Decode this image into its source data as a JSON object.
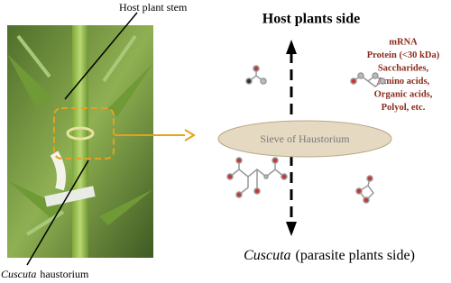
{
  "photo_labels": {
    "stem": "Host plant stem",
    "haustorium": {
      "genus": "Cuscuta",
      "text": "haustorium"
    }
  },
  "host_side": {
    "title": "Host plants side",
    "molecules": [
      "mRNA",
      "Protein (<30 kDa)",
      "Saccharides,",
      "Amino acids,",
      "Organic acids,",
      "Polyol, etc."
    ]
  },
  "sieve": "Sieve of Haustorium",
  "parasite_side": {
    "genus": "Cuscuta",
    "text": "(parasite plants side)"
  }
}
